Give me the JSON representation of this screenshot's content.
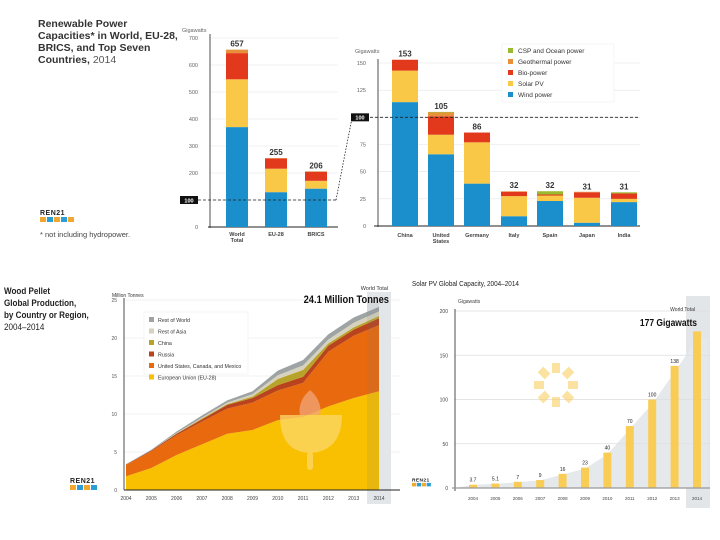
{
  "panel1": {
    "title": "Renewable Power Capacities* in World, EU-28, BRICS, and Top Seven Countries,",
    "title_year": "2014",
    "footnote": "* not including hydropower.",
    "logo_text": "REN21"
  },
  "panel3": {
    "title_lines": [
      "Wood Pellet",
      "Global Production,",
      "by Country or Region,"
    ],
    "title_year": "2004–2014",
    "logo_text": "REN21"
  },
  "panel4": {
    "title": "Solar PV Global Capacity, 2004–2014",
    "logo_text": "REN21"
  },
  "colors": {
    "wind": "#1a8fcc",
    "solar": "#f9c846",
    "bio": "#e2381c",
    "geothermal": "#e8913a",
    "csp_ocean": "#9abb2e",
    "eu": "#f8c000",
    "namerica": "#e8690e",
    "russia": "#b8431c",
    "china": "#b8a32a",
    "rest_asia": "#d6d2bd",
    "rest_world": "#9ea3a3",
    "solar_bar": "#f9cc55",
    "solar_area": "#e3e6e9"
  },
  "chart_data": [
    {
      "type": "bar",
      "stacked": true,
      "title": "Renewable Power Capacities* in World, EU-28, BRICS, and Top Seven Countries, 2014",
      "ylabel": "Gigawatts",
      "ylim": [
        0,
        700
      ],
      "yticks": [
        0,
        100,
        200,
        300,
        400,
        500,
        600,
        700
      ],
      "categories": [
        "World Total",
        "EU-28",
        "BRICS"
      ],
      "category_labels": [
        [
          "World",
          "Total"
        ],
        [
          "EU-28"
        ],
        [
          "BRICS"
        ]
      ],
      "totals": [
        657,
        255,
        206
      ],
      "series": [
        {
          "name": "Wind power",
          "key": "wind",
          "values": [
            370,
            129,
            142
          ]
        },
        {
          "name": "Solar PV",
          "key": "solar",
          "values": [
            177,
            87,
            29
          ]
        },
        {
          "name": "Bio-power",
          "key": "bio",
          "values": [
            97,
            38,
            34
          ]
        },
        {
          "name": "Geothermal power",
          "key": "geothermal",
          "values": [
            12.8,
            0.9,
            0.5
          ]
        },
        {
          "name": "CSP and Ocean power",
          "key": "csp_ocean",
          "values": [
            0.2,
            0.1,
            0.5
          ]
        }
      ],
      "reference_line": {
        "value": 100,
        "label": "100",
        "style": "dashed"
      }
    },
    {
      "type": "bar",
      "stacked": true,
      "ylabel": "Gigawatts",
      "ylim": [
        0,
        150
      ],
      "yticks": [
        0,
        25,
        50,
        75,
        100,
        125,
        150
      ],
      "categories": [
        "China",
        "United States",
        "Germany",
        "Italy",
        "Spain",
        "Japan",
        "India"
      ],
      "category_labels": [
        [
          "China"
        ],
        [
          "United",
          "States"
        ],
        [
          "Germany"
        ],
        [
          "Italy"
        ],
        [
          "Spain"
        ],
        [
          "Japan"
        ],
        [
          "India"
        ]
      ],
      "totals": [
        153,
        105,
        86,
        32,
        32,
        31,
        31
      ],
      "series": [
        {
          "name": "Wind power",
          "key": "wind",
          "values": [
            114,
            66,
            39,
            9,
            23,
            3,
            22
          ]
        },
        {
          "name": "Solar PV",
          "key": "solar",
          "values": [
            29,
            18,
            38,
            18.5,
            5,
            23,
            3
          ]
        },
        {
          "name": "Bio-power",
          "key": "bio",
          "values": [
            10,
            17,
            9,
            4,
            1,
            5,
            5
          ]
        },
        {
          "name": "Geothermal power",
          "key": "geothermal",
          "values": [
            0,
            3.5,
            0,
            0.5,
            0,
            0.5,
            0
          ]
        },
        {
          "name": "CSP and Ocean power",
          "key": "csp_ocean",
          "values": [
            0,
            0.5,
            0,
            0,
            3,
            0,
            1
          ]
        }
      ],
      "legend": {
        "placement": "top-right",
        "entries": [
          {
            "name": "CSP and Ocean power",
            "key": "csp_ocean"
          },
          {
            "name": "Geothermal power",
            "key": "geothermal"
          },
          {
            "name": "Bio-power",
            "key": "bio"
          },
          {
            "name": "Solar PV",
            "key": "solar"
          },
          {
            "name": "Wind power",
            "key": "wind"
          }
        ]
      },
      "reference_line": {
        "value": 100,
        "label": "100",
        "style": "dashed"
      }
    },
    {
      "type": "area",
      "stacked": true,
      "title": "Wood Pellet Global Production, by Country or Region, 2004–2014",
      "ylabel": "Million Tonnes",
      "ylim": [
        0,
        25
      ],
      "yticks": [
        0,
        5,
        10,
        15,
        20,
        25
      ],
      "x": [
        2004,
        2005,
        2006,
        2007,
        2008,
        2009,
        2010,
        2011,
        2012,
        2013,
        2014
      ],
      "annotation": {
        "label": "World Total",
        "value_text": "24.1 Million Tonnes"
      },
      "series": [
        {
          "name": "European Union (EU-28)",
          "key": "eu",
          "values": [
            1.8,
            2.9,
            4.6,
            6.0,
            7.4,
            7.9,
            9.2,
            9.6,
            11.0,
            12.1,
            13.0
          ]
        },
        {
          "name": "United States, Canada, and Mexico",
          "key": "namerica",
          "values": [
            1.5,
            2.2,
            2.6,
            3.0,
            3.3,
            3.6,
            3.9,
            4.5,
            7.2,
            8.2,
            8.7
          ]
        },
        {
          "name": "Russia",
          "key": "russia",
          "values": [
            0.05,
            0.1,
            0.2,
            0.3,
            0.5,
            0.6,
            0.7,
            0.8,
            0.8,
            0.8,
            0.9
          ]
        },
        {
          "name": "China",
          "key": "china",
          "values": [
            0.0,
            0.0,
            0.05,
            0.1,
            0.1,
            0.2,
            0.8,
            0.9,
            0.3,
            0.3,
            0.3
          ]
        },
        {
          "name": "Rest of Asia",
          "key": "rest_asia",
          "values": [
            0.0,
            0.0,
            0.05,
            0.1,
            0.2,
            0.3,
            0.5,
            0.6,
            0.5,
            0.6,
            0.6
          ]
        },
        {
          "name": "Rest of World",
          "key": "rest_world",
          "values": [
            0.05,
            0.1,
            0.2,
            0.3,
            0.3,
            0.4,
            0.6,
            0.7,
            0.7,
            0.7,
            0.6
          ]
        }
      ],
      "legend": {
        "placement": "top-left",
        "entries": [
          {
            "name": "Rest of World",
            "key": "rest_world"
          },
          {
            "name": "Rest of Asia",
            "key": "rest_asia"
          },
          {
            "name": "China",
            "key": "china"
          },
          {
            "name": "Russia",
            "key": "russia"
          },
          {
            "name": "United States, Canada, and Mexico",
            "key": "namerica"
          },
          {
            "name": "European Union (EU-28)",
            "key": "eu"
          }
        ]
      }
    },
    {
      "type": "bar",
      "title": "Solar PV Global Capacity, 2004–2014",
      "ylabel": "Gigawatts",
      "ylim": [
        0,
        200
      ],
      "yticks": [
        0,
        50,
        100,
        150,
        200
      ],
      "categories": [
        "2004",
        "2005",
        "2006",
        "2007",
        "2008",
        "2009",
        "2010",
        "2011",
        "2012",
        "2013",
        "2014"
      ],
      "values": [
        3.7,
        5.1,
        7,
        9,
        16,
        23,
        40,
        70,
        100,
        138,
        177
      ],
      "value_labels": [
        "3.7",
        "5.1",
        "7",
        "9",
        "16",
        "23",
        "40",
        "70",
        "100",
        "138",
        ""
      ],
      "annotation": {
        "label": "World Total",
        "value_text": "177 Gigawatts"
      }
    }
  ]
}
